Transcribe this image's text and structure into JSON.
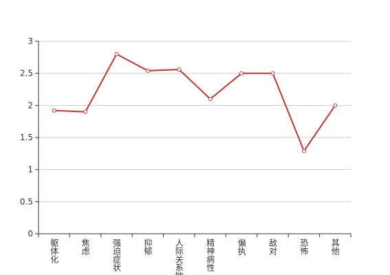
{
  "chart_data": {
    "type": "line",
    "categories": [
      "躯体化",
      "焦虑",
      "强迫症状",
      "抑郁",
      "人际关系敏感",
      "精神病性",
      "偏执",
      "敌对",
      "恐怖",
      "其他"
    ],
    "values": [
      1.92,
      1.9,
      2.8,
      2.54,
      2.56,
      2.1,
      2.5,
      2.5,
      1.29,
      2.0
    ],
    "color": "#c23531",
    "ylim": [
      0,
      3
    ],
    "yticks": [
      0,
      0.5,
      1,
      1.5,
      2,
      2.5,
      3
    ],
    "grid": true
  }
}
